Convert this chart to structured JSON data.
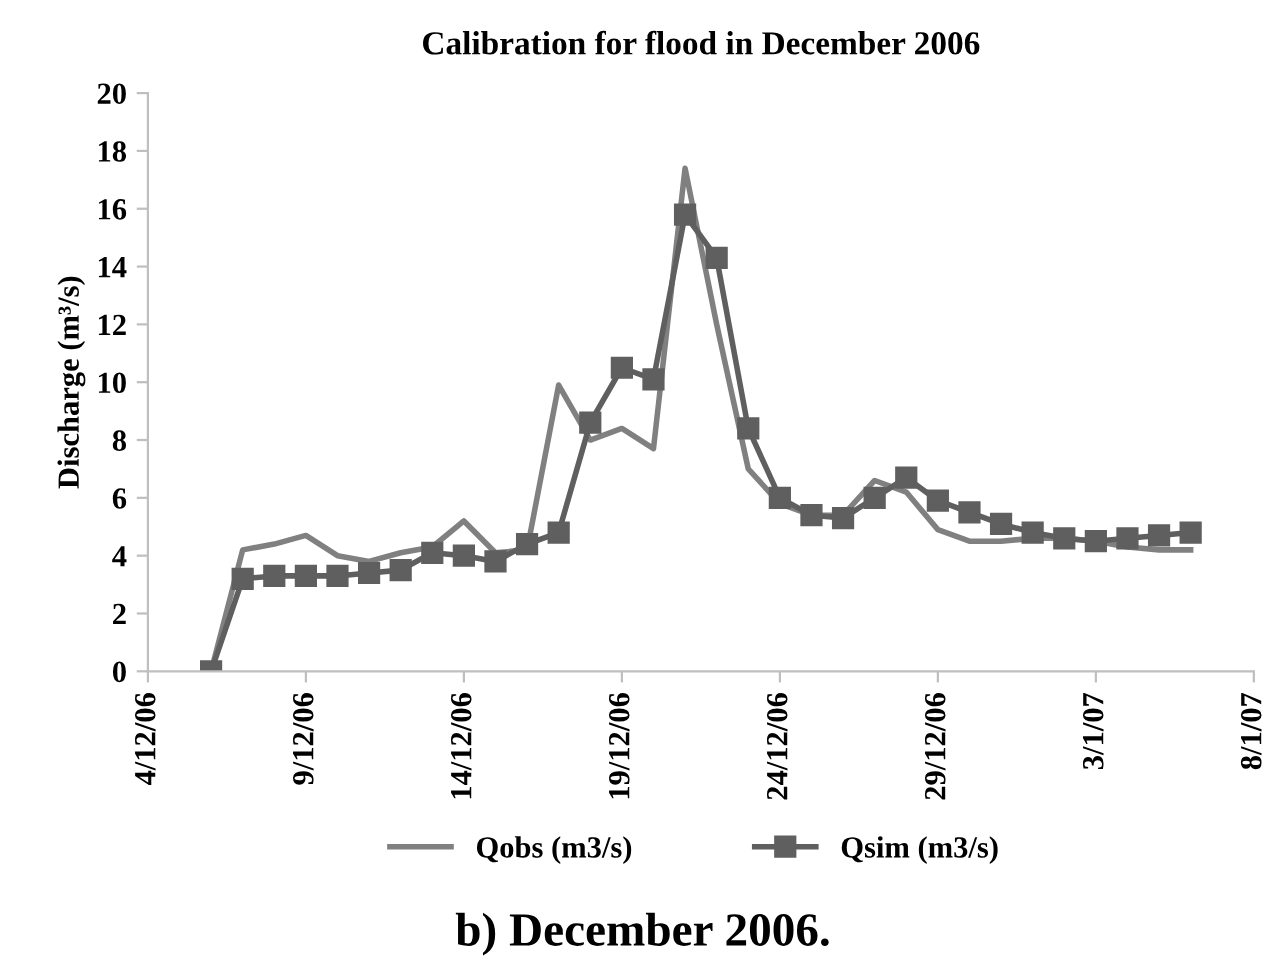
{
  "chart_data": {
    "type": "line",
    "title": "Calibration for flood in December 2006",
    "ylabel": "Discharge (m³/s)",
    "annotations": [
      "b) December 2006."
    ],
    "x": [
      "2006-12-06",
      "2006-12-07",
      "2006-12-08",
      "2006-12-09",
      "2006-12-10",
      "2006-12-11",
      "2006-12-12",
      "2006-12-13",
      "2006-12-14",
      "2006-12-15",
      "2006-12-16",
      "2006-12-17",
      "2006-12-18",
      "2006-12-19",
      "2006-12-20",
      "2006-12-21",
      "2006-12-22",
      "2006-12-23",
      "2006-12-24",
      "2006-12-25",
      "2006-12-26",
      "2006-12-27",
      "2006-12-28",
      "2006-12-29",
      "2006-12-30",
      "2006-12-31",
      "2007-01-01",
      "2007-01-02",
      "2007-01-03",
      "2007-01-04",
      "2007-01-05",
      "2007-01-06"
    ],
    "series": [
      {
        "name": "Qobs (m3/s)",
        "color": "#808080",
        "marker": "none",
        "values": [
          0,
          4.2,
          4.4,
          4.7,
          4.0,
          3.8,
          4.1,
          4.3,
          5.2,
          4.1,
          4.2,
          9.9,
          8.0,
          8.4,
          7.7,
          17.4,
          12.0,
          7.0,
          5.8,
          5.4,
          5.4,
          6.6,
          6.2,
          4.9,
          4.5,
          4.5,
          4.6,
          4.6,
          4.5,
          4.3,
          4.2,
          4.2
        ]
      },
      {
        "name": "Qsim (m3/s)",
        "color": "#5f5f5f",
        "marker": "square",
        "values": [
          0,
          3.2,
          3.3,
          3.3,
          3.3,
          3.4,
          3.5,
          4.1,
          4.0,
          3.8,
          4.4,
          4.8,
          8.6,
          10.5,
          10.1,
          15.8,
          14.3,
          8.4,
          6.0,
          5.4,
          5.3,
          6.0,
          6.7,
          5.9,
          5.5,
          5.1,
          4.8,
          4.6,
          4.5,
          4.6,
          4.7,
          4.8
        ]
      }
    ],
    "xlim": [
      "2006-12-04",
      "2007-01-08"
    ],
    "xticks": [
      {
        "value": "2006-12-04",
        "label": "4/12/06"
      },
      {
        "value": "2006-12-09",
        "label": "9/12/06"
      },
      {
        "value": "2006-12-14",
        "label": "14/12/06"
      },
      {
        "value": "2006-12-19",
        "label": "19/12/06"
      },
      {
        "value": "2006-12-24",
        "label": "24/12/06"
      },
      {
        "value": "2006-12-29",
        "label": "29/12/06"
      },
      {
        "value": "2007-01-03",
        "label": "3/1/07"
      },
      {
        "value": "2007-01-08",
        "label": "8/1/07"
      }
    ],
    "ylim": [
      0,
      20
    ],
    "yticks": [
      0,
      2,
      4,
      6,
      8,
      10,
      12,
      14,
      16,
      18,
      20
    ],
    "legend": "bottom",
    "grid": false,
    "line_style": "solid"
  }
}
